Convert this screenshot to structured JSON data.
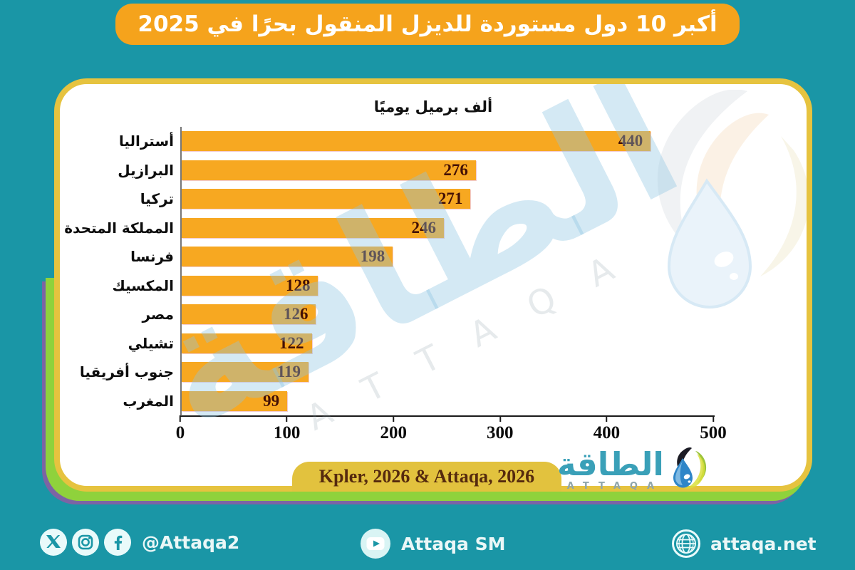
{
  "title_banner": {
    "text": "أكبر 10 دول مستوردة للديزل المنقول بحرًا في 2025"
  },
  "chart_data": {
    "type": "bar",
    "orientation": "horizontal",
    "title": "ألف برميل يوميًا",
    "categories": [
      "أستراليا",
      "البرازيل",
      "تركيا",
      "المملكة المتحدة",
      "فرنسا",
      "المكسيك",
      "مصر",
      "تشيلي",
      "جنوب أفريقيا",
      "المغرب"
    ],
    "values": [
      440,
      276,
      271,
      246,
      198,
      128,
      126,
      122,
      119,
      99
    ],
    "xticks": [
      "0",
      "100",
      "200",
      "300",
      "400",
      "500"
    ],
    "xlim": [
      0,
      500
    ],
    "bar_color": "#F7A821",
    "grid": false,
    "legend": false
  },
  "source_pill": {
    "text": "Kpler, 2026 & Attaqa, 2026"
  },
  "brand": {
    "arabic": "الطاقة",
    "latin": "ATTAQA"
  },
  "watermark": {
    "arabic": "الطاقة",
    "latin": "ATTAQA"
  },
  "footer": {
    "social_handle": "@Attaqa2",
    "youtube_label": "Attaqa SM",
    "website": "attaqa.net"
  },
  "colors": {
    "background": "#1A96A6",
    "banner": "#F5A31C",
    "card_border": "#E6C33F",
    "accent_green": "#8FD23C",
    "accent_purple": "#7C64A4"
  }
}
